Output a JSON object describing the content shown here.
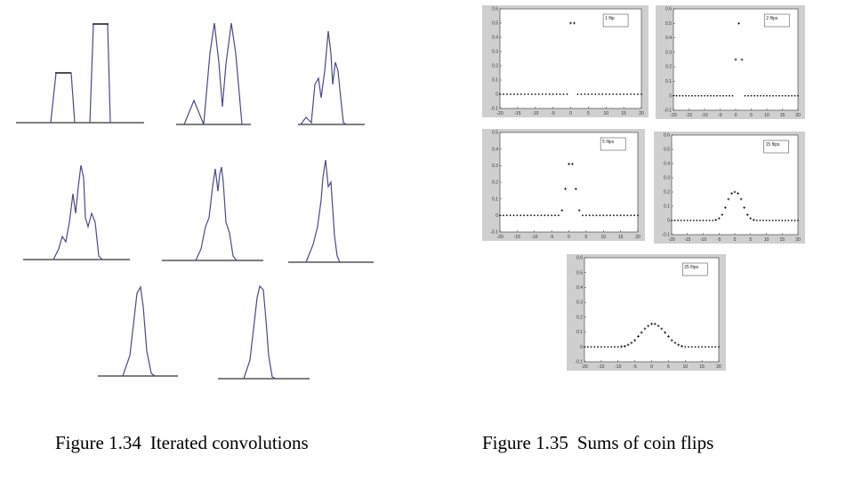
{
  "left_figure": {
    "caption_number": "Figure 1.34",
    "caption_text": "Iterated convolutions"
  },
  "right_figure": {
    "caption_number": "Figure 1.35",
    "caption_text": "Sums of coin flips"
  },
  "chart_data": [
    {
      "type": "scatter",
      "title": "",
      "legend": "1 flip",
      "xlabel": "",
      "ylabel": "",
      "xlim": [
        -20,
        20
      ],
      "ylim": [
        -0.1,
        0.6
      ],
      "x_ticks": [
        "-20",
        "-15",
        "-10",
        "-5",
        "0",
        "5",
        "10",
        "15",
        "20"
      ],
      "y_ticks": [
        "-0.1",
        "0",
        "0.1",
        "0.2",
        "0.3",
        "0.4",
        "0.5",
        "0.6"
      ],
      "series": [
        {
          "x": [
            0,
            1
          ],
          "y": [
            0.5,
            0.5
          ]
        }
      ]
    },
    {
      "type": "scatter",
      "title": "",
      "legend": "2 flips",
      "xlabel": "",
      "ylabel": "",
      "xlim": [
        -20,
        20
      ],
      "ylim": [
        -0.1,
        0.6
      ],
      "x_ticks": [
        "-20",
        "-15",
        "-10",
        "-5",
        "0",
        "5",
        "10",
        "15",
        "20"
      ],
      "y_ticks": [
        "-0.1",
        "0",
        "0.1",
        "0.2",
        "0.3",
        "0.4",
        "0.5",
        "0.6"
      ],
      "series": [
        {
          "x": [
            0,
            1,
            2
          ],
          "y": [
            0.25,
            0.5,
            0.25
          ]
        }
      ]
    },
    {
      "type": "scatter",
      "title": "",
      "legend": "5 flips",
      "xlabel": "",
      "ylabel": "",
      "xlim": [
        -20,
        20
      ],
      "ylim": [
        -0.1,
        0.5
      ],
      "x_ticks": [
        "-20",
        "-15",
        "-10",
        "-5",
        "0",
        "5",
        "10",
        "15",
        "20"
      ],
      "y_ticks": [
        "-0.1",
        "0",
        "0.1",
        "0.2",
        "0.3",
        "0.4",
        "0.5"
      ],
      "series": [
        {
          "x": [
            -2,
            -1,
            0,
            1,
            2,
            3
          ],
          "y": [
            0.03,
            0.16,
            0.31,
            0.31,
            0.16,
            0.03
          ]
        }
      ]
    },
    {
      "type": "scatter",
      "title": "",
      "legend": "15 flips",
      "xlabel": "",
      "ylabel": "",
      "xlim": [
        -20,
        20
      ],
      "ylim": [
        -0.1,
        0.6
      ],
      "x_ticks": [
        "-20",
        "-15",
        "-10",
        "-5",
        "0",
        "5",
        "10",
        "15",
        "20"
      ],
      "y_ticks": [
        "-0.1",
        "0",
        "0.1",
        "0.2",
        "0.3",
        "0.4",
        "0.5",
        "0.6"
      ],
      "series": [
        {
          "x": [
            -6,
            -5,
            -4,
            -3,
            -2,
            -1,
            0,
            1,
            2,
            3,
            4,
            5,
            6
          ],
          "y": [
            0.004,
            0.014,
            0.04,
            0.09,
            0.15,
            0.19,
            0.2,
            0.19,
            0.15,
            0.09,
            0.04,
            0.014,
            0.004
          ]
        }
      ]
    },
    {
      "type": "scatter",
      "title": "",
      "legend": "25 flips",
      "xlabel": "",
      "ylabel": "",
      "xlim": [
        -20,
        20
      ],
      "ylim": [
        -0.1,
        0.6
      ],
      "x_ticks": [
        "-20",
        "-15",
        "-10",
        "-5",
        "0",
        "5",
        "10",
        "15",
        "20"
      ],
      "y_ticks": [
        "-0.1",
        "0",
        "0.1",
        "0.2",
        "0.3",
        "0.4",
        "0.5",
        "0.6"
      ],
      "series": [
        {
          "x": [
            -9,
            -8,
            -7,
            -6,
            -5,
            -4,
            -3,
            -2,
            -1,
            0,
            1,
            2,
            3,
            4,
            5,
            6,
            7,
            8,
            9
          ],
          "y": [
            0.002,
            0.005,
            0.014,
            0.027,
            0.044,
            0.071,
            0.097,
            0.122,
            0.141,
            0.155,
            0.155,
            0.141,
            0.122,
            0.097,
            0.071,
            0.044,
            0.027,
            0.014,
            0.005
          ]
        }
      ]
    }
  ]
}
